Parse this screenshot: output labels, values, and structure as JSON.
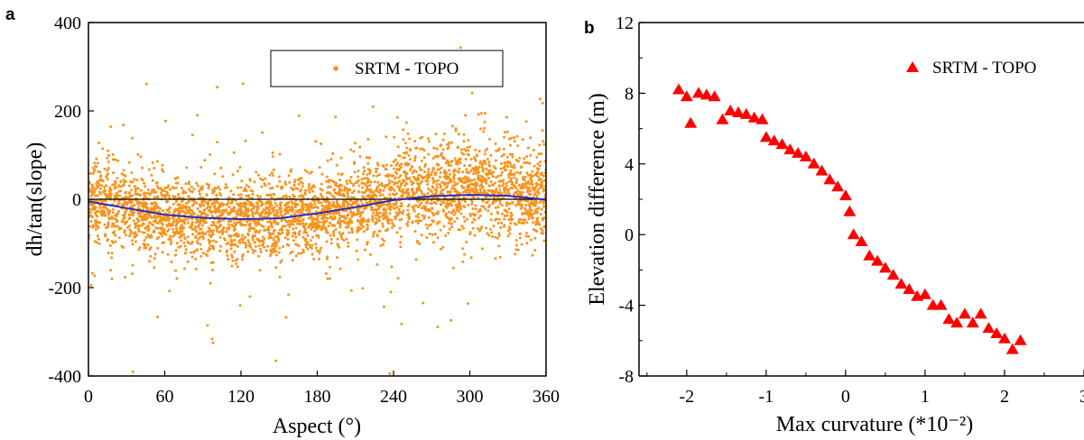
{
  "chart_data": [
    {
      "panel": "a",
      "type": "scatter",
      "title": "",
      "xlabel": "Aspect (°)",
      "ylabel": "dh/tan(slope)",
      "xlim": [
        0,
        360
      ],
      "ylim": [
        -400,
        400
      ],
      "xticks": [
        "0",
        "60",
        "120",
        "180",
        "240",
        "300",
        "360"
      ],
      "yticks": [
        "400",
        "200",
        "0",
        "-200",
        "-400"
      ],
      "legend": {
        "label": "SRTM - TOPO",
        "placement": "top-right"
      },
      "grid": false,
      "zero_line": true,
      "colors": {
        "points": "#f7941d",
        "fit": "#2b2bb5",
        "zero": "#000000"
      },
      "series": [
        {
          "name": "SRTM - TOPO",
          "note_dense_cloud": "many thousands of points; band mostly within about ±120 around the fitted curve, outliers to ±400",
          "band_center": [
            [
              0,
              -5
            ],
            [
              30,
              -20
            ],
            [
              60,
              -35
            ],
            [
              90,
              -42
            ],
            [
              120,
              -45
            ],
            [
              150,
              -43
            ],
            [
              180,
              -32
            ],
            [
              210,
              -18
            ],
            [
              240,
              0
            ],
            [
              270,
              8
            ],
            [
              300,
              10
            ],
            [
              330,
              8
            ],
            [
              360,
              0
            ]
          ]
        },
        {
          "fit_curve": [
            [
              0,
              -5
            ],
            [
              30,
              -20
            ],
            [
              60,
              -35
            ],
            [
              90,
              -42
            ],
            [
              120,
              -45
            ],
            [
              150,
              -43
            ],
            [
              180,
              -32
            ],
            [
              210,
              -18
            ],
            [
              240,
              -2
            ],
            [
              270,
              7
            ],
            [
              300,
              10
            ],
            [
              330,
              8
            ],
            [
              360,
              -1
            ]
          ]
        }
      ]
    },
    {
      "panel": "b",
      "type": "scatter",
      "title": "",
      "xlabel": "Max curvature (*10⁻²)",
      "ylabel": "Elevation difference (m)",
      "xlim": [
        -2.6,
        3.0
      ],
      "ylim": [
        -8,
        12
      ],
      "xticks": [
        "-2",
        "-1",
        "0",
        "1",
        "2",
        "3"
      ],
      "yticks": [
        "12",
        "8",
        "4",
        "0",
        "-4",
        "-8"
      ],
      "legend": {
        "label": "SRTM - TOPO",
        "placement": "top-right"
      },
      "grid": false,
      "colors": {
        "marker": "#ff0000"
      },
      "series": [
        {
          "name": "SRTM - TOPO",
          "marker": "triangle",
          "points": [
            [
              -2.1,
              8.2
            ],
            [
              -2.0,
              7.8
            ],
            [
              -1.95,
              6.3
            ],
            [
              -1.85,
              8.0
            ],
            [
              -1.75,
              7.9
            ],
            [
              -1.65,
              7.8
            ],
            [
              -1.55,
              6.5
            ],
            [
              -1.45,
              7.0
            ],
            [
              -1.35,
              6.9
            ],
            [
              -1.25,
              6.8
            ],
            [
              -1.15,
              6.6
            ],
            [
              -1.05,
              6.5
            ],
            [
              -1.0,
              5.5
            ],
            [
              -0.9,
              5.3
            ],
            [
              -0.8,
              5.1
            ],
            [
              -0.7,
              4.8
            ],
            [
              -0.6,
              4.6
            ],
            [
              -0.5,
              4.4
            ],
            [
              -0.4,
              4.0
            ],
            [
              -0.3,
              3.6
            ],
            [
              -0.2,
              3.1
            ],
            [
              -0.1,
              2.7
            ],
            [
              0.0,
              2.2
            ],
            [
              0.05,
              1.3
            ],
            [
              0.1,
              0.0
            ],
            [
              0.2,
              -0.4
            ],
            [
              0.3,
              -1.2
            ],
            [
              0.4,
              -1.5
            ],
            [
              0.5,
              -1.9
            ],
            [
              0.6,
              -2.3
            ],
            [
              0.7,
              -2.8
            ],
            [
              0.8,
              -3.1
            ],
            [
              0.9,
              -3.5
            ],
            [
              1.0,
              -3.4
            ],
            [
              1.1,
              -4.0
            ],
            [
              1.2,
              -4.0
            ],
            [
              1.3,
              -4.8
            ],
            [
              1.4,
              -5.0
            ],
            [
              1.5,
              -4.5
            ],
            [
              1.6,
              -5.0
            ],
            [
              1.7,
              -4.5
            ],
            [
              1.8,
              -5.3
            ],
            [
              1.9,
              -5.6
            ],
            [
              2.0,
              -5.9
            ],
            [
              2.1,
              -6.5
            ],
            [
              2.2,
              -6.0
            ]
          ]
        }
      ]
    }
  ]
}
